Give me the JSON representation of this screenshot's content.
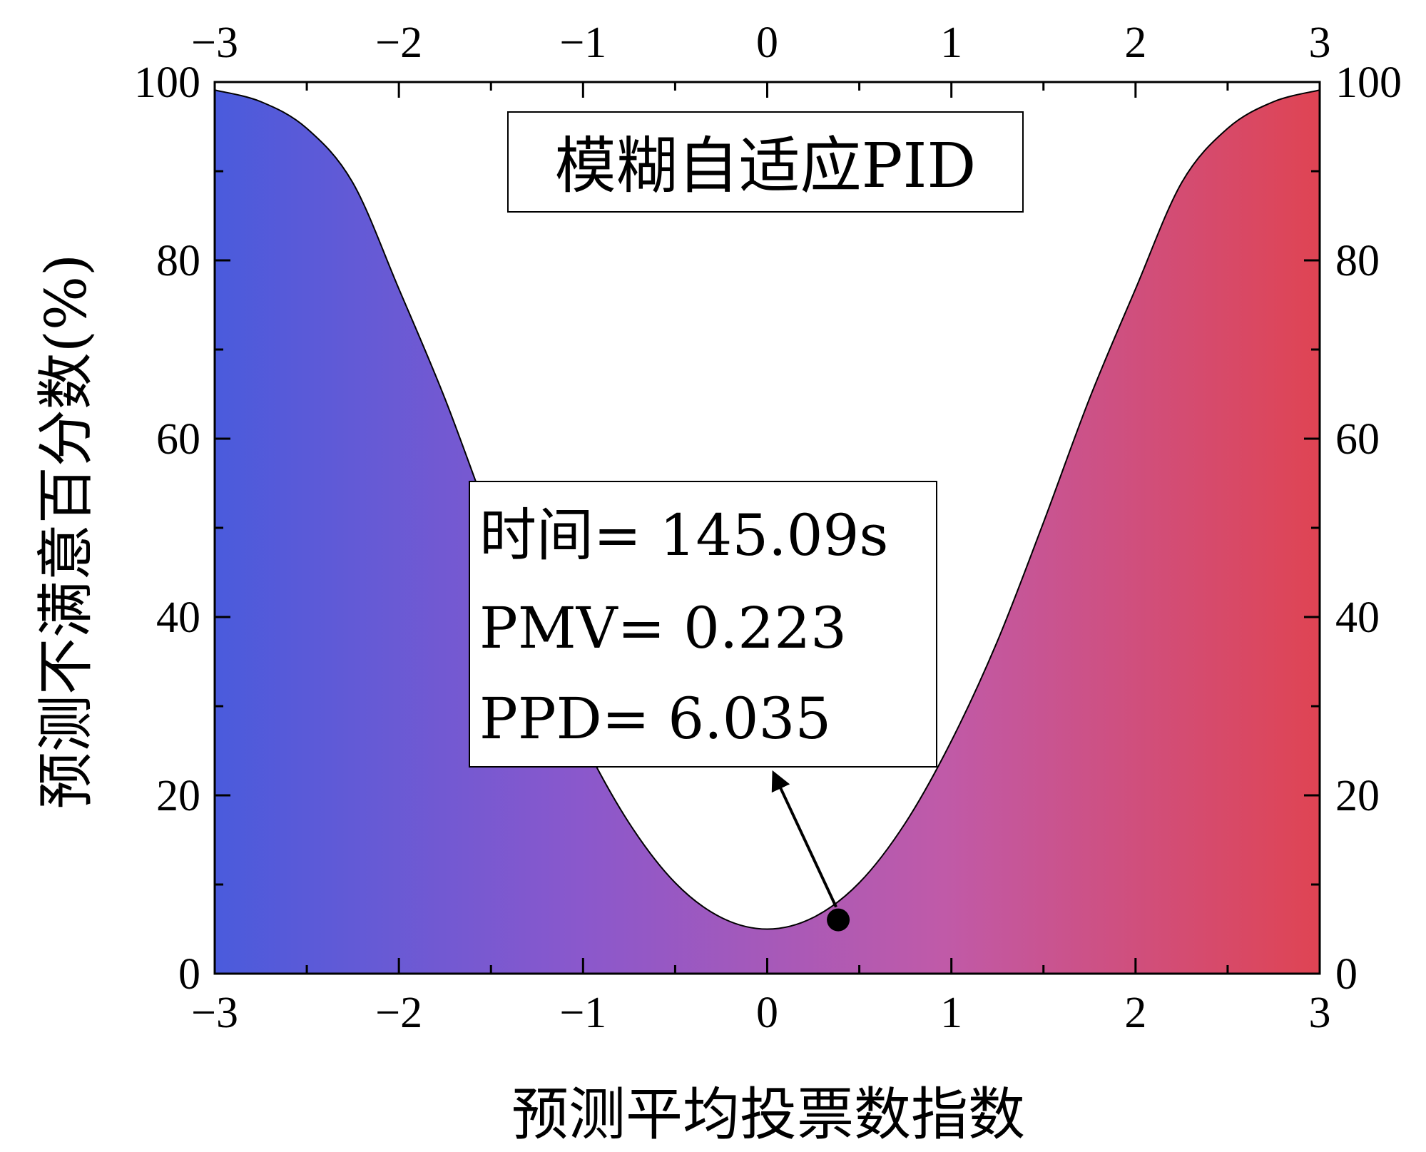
{
  "chart_data": {
    "type": "area",
    "title": "模糊自适应PID",
    "xlabel": "预测平均投票数指数",
    "ylabel": "预测不满意百分数(%)",
    "xlim": [
      -3,
      3
    ],
    "ylim": [
      0,
      100
    ],
    "x_ticks": [
      -3,
      -2,
      -1,
      0,
      1,
      2,
      3
    ],
    "x_tick_labels": [
      "−3",
      "−2",
      "−1",
      "0",
      "1",
      "2",
      "3"
    ],
    "y_ticks": [
      0,
      20,
      40,
      60,
      80,
      100
    ],
    "y_tick_labels": [
      "0",
      "20",
      "40",
      "60",
      "80",
      "100"
    ],
    "grid": false,
    "gradient_colors": [
      "#4a5bdc",
      "#8a58cc",
      "#c05aa8",
      "#df4453"
    ],
    "curve": {
      "x": [
        -3,
        -2.75,
        -2.5,
        -2.25,
        -2,
        -1.75,
        -1.5,
        -1.25,
        -1,
        -0.75,
        -0.5,
        -0.25,
        0,
        0.25,
        0.5,
        0.75,
        1,
        1.25,
        1.5,
        1.75,
        2,
        2.25,
        2.5,
        2.75,
        3
      ],
      "y": [
        99.1,
        97.8,
        94.8,
        88.7,
        76.8,
        64.5,
        50.6,
        37.3,
        26.1,
        16.9,
        10.2,
        6.3,
        5.0,
        6.3,
        10.2,
        16.9,
        26.1,
        37.3,
        50.6,
        64.5,
        76.8,
        88.7,
        94.8,
        97.8,
        99.1
      ]
    },
    "marker": {
      "x": 0.223,
      "y": 6.035
    },
    "annotation": {
      "lines": [
        "时间= 145.09s",
        "PMV= 0.223",
        "PPD= 6.035"
      ]
    }
  }
}
